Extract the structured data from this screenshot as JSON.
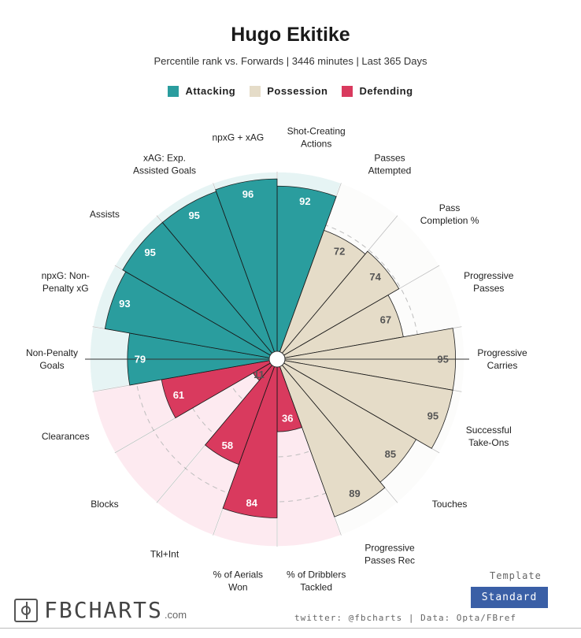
{
  "title": "Hugo Ekitike",
  "subtitle": "Percentile rank vs. Forwards | 3446 minutes | Last 365 Days",
  "legend": [
    {
      "label": "Attacking",
      "color": "#2a9d9e"
    },
    {
      "label": "Possession",
      "color": "#e5dcc8"
    },
    {
      "label": "Defending",
      "color": "#d93a5e"
    }
  ],
  "chart_data": {
    "type": "polar-bar",
    "title": "Hugo Ekitike",
    "subtitle": "Percentile rank vs. Forwards | 3446 minutes | Last 365 Days",
    "rlim": [
      0,
      100
    ],
    "categories": [
      "Shot-Creating Actions",
      "Passes Attempted",
      "Pass Completion %",
      "Progressive Passes",
      "Progressive Carries",
      "Successful Take-Ons",
      "Touches",
      "Progressive Passes Rec",
      "% of Dribblers Tackled",
      "% of Aerials Won",
      "Tkl+Int",
      "Blocks",
      "Clearances",
      "Non-Penalty Goals",
      "npxG: Non-Penalty xG",
      "Assists",
      "xAG: Exp. Assisted Goals",
      "npxG + xAG"
    ],
    "values": [
      92,
      72,
      74,
      67,
      95,
      95,
      85,
      89,
      36,
      84,
      58,
      11,
      61,
      79,
      93,
      95,
      95,
      96
    ],
    "groups": [
      "Attacking",
      "Possession",
      "Possession",
      "Possession",
      "Possession",
      "Possession",
      "Possession",
      "Possession",
      "Defending",
      "Defending",
      "Defending",
      "Defending",
      "Defending",
      "Attacking",
      "Attacking",
      "Attacking",
      "Attacking",
      "Attacking"
    ],
    "series": [
      {
        "name": "Attacking",
        "color": "#2a9d9e",
        "bg": "#e6f4f4"
      },
      {
        "name": "Possession",
        "color": "#e5dcc8",
        "bg": "#fcfcfb"
      },
      {
        "name": "Defending",
        "color": "#d93a5e",
        "bg": "#fdeaf0"
      }
    ],
    "label_lines": [
      [
        "Shot-Creating",
        "Actions"
      ],
      [
        "Passes",
        "Attempted"
      ],
      [
        "Pass",
        "Completion %"
      ],
      [
        "Progressive",
        "Passes"
      ],
      [
        "Progressive",
        "Carries"
      ],
      [
        "Successful",
        "Take-Ons"
      ],
      [
        "Touches"
      ],
      [
        "Progressive",
        "Passes Rec"
      ],
      [
        "% of Dribblers",
        "Tackled"
      ],
      [
        "% of Aerials",
        "Won"
      ],
      [
        "Tkl+Int"
      ],
      [
        "Blocks"
      ],
      [
        "Clearances"
      ],
      [
        "Non-Penalty",
        "Goals"
      ],
      [
        "npxG: Non-",
        "Penalty xG"
      ],
      [
        "Assists"
      ],
      [
        "xAG: Exp.",
        "Assisted Goals"
      ],
      [
        "npxG + xAG"
      ]
    ]
  },
  "branding": {
    "logo_text": "FBCHARTS",
    "logo_suffix": ".com",
    "template_label": "Template",
    "template_value": "Standard",
    "credit": "twitter: @fbcharts | Data: Opta/FBref"
  }
}
